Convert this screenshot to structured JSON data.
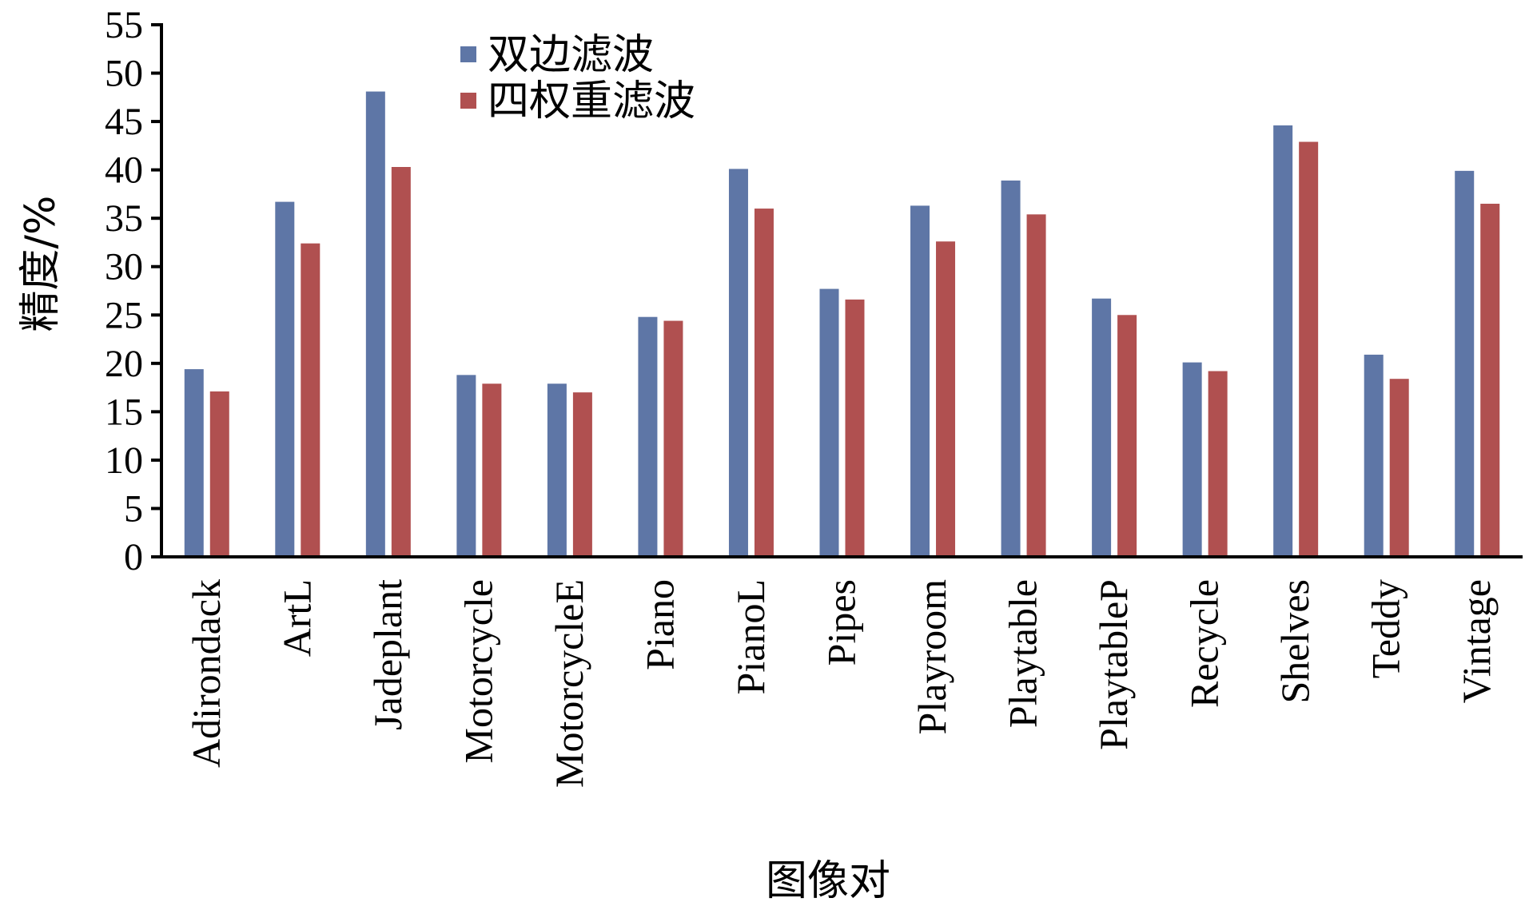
{
  "chart_data": {
    "type": "bar",
    "categories": [
      "Adirondack",
      "ArtL",
      "Jadeplant",
      "Motorcycle",
      "MotorcycleE",
      "Piano",
      "PianoL",
      "Pipes",
      "Playroom",
      "Playtable",
      "PlaytableP",
      "Recycle",
      "Shelves",
      "Teddy",
      "Vintage"
    ],
    "series": [
      {
        "name": "双边滤波",
        "color": "#5e76a6",
        "values": [
          19.4,
          36.7,
          48.1,
          18.8,
          17.9,
          24.8,
          40.1,
          27.7,
          36.3,
          38.9,
          26.7,
          20.1,
          44.6,
          20.9,
          39.9
        ]
      },
      {
        "name": "四权重滤波",
        "color": "#b05050",
        "values": [
          17.1,
          32.4,
          40.3,
          17.9,
          17.0,
          24.4,
          36.0,
          26.6,
          32.6,
          35.4,
          25.0,
          19.2,
          42.9,
          18.4,
          36.5
        ]
      }
    ],
    "xlabel": "图像对",
    "ylabel": "精度/%",
    "ylim": [
      0,
      55
    ],
    "yticks": [
      0,
      5,
      10,
      15,
      20,
      25,
      30,
      35,
      40,
      45,
      50,
      55
    ],
    "grid": false,
    "legend_position": "top-left"
  }
}
